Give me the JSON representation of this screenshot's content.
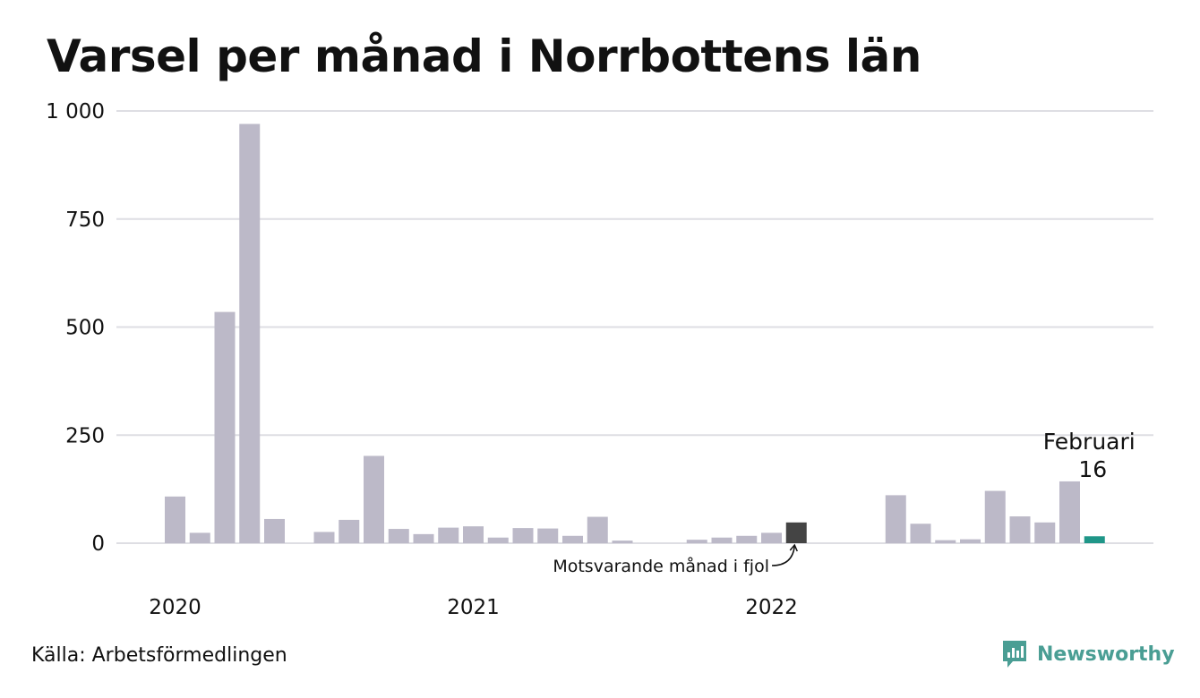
{
  "chart_data": {
    "type": "bar",
    "title": "Varsel per månad i Norrbottens län",
    "xlabel": "",
    "ylabel": "",
    "ylim": [
      0,
      1000
    ],
    "y_ticks": [
      {
        "value": 0,
        "label": "0"
      },
      {
        "value": 250,
        "label": "250"
      },
      {
        "value": 500,
        "label": "500"
      },
      {
        "value": 750,
        "label": "750"
      },
      {
        "value": 1000,
        "label": "1 000"
      }
    ],
    "x_tick_labels": [
      {
        "label": "2020",
        "at_index": 0
      },
      {
        "label": "2021",
        "at_index": 12
      },
      {
        "label": "2022",
        "at_index": 24
      }
    ],
    "values": [
      108,
      24,
      535,
      970,
      56,
      0,
      26,
      54,
      202,
      33,
      21,
      36,
      39,
      13,
      35,
      34,
      17,
      61,
      6,
      0,
      0,
      8,
      13,
      17,
      24,
      48,
      0,
      0,
      0,
      111,
      45,
      7,
      9,
      121,
      62,
      48,
      143,
      16
    ],
    "highlight": {
      "comparison_index": 25,
      "comparison_label": "Motsvarande månad i fjol",
      "current_index": 37,
      "current_label": "Februari",
      "current_value_label": "16"
    },
    "grid": true,
    "colors": {
      "bar": "#bcb9c8",
      "comparison": "#444444",
      "current": "#1f9688",
      "grid": "#dedee3"
    }
  },
  "footer": {
    "source": "Källa: Arbetsförmedlingen",
    "brand": "Newsworthy",
    "brand_color": "#4a9e94",
    "brand_icon": "newsworthy-logo-icon"
  }
}
